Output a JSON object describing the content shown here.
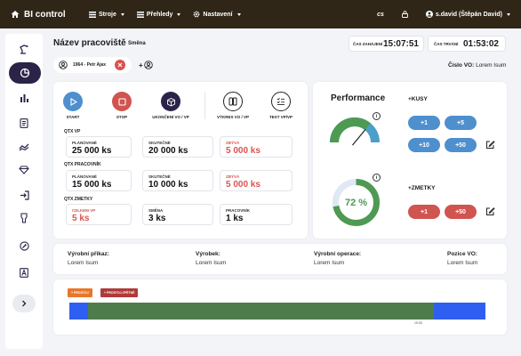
{
  "app": {
    "title": "BI control"
  },
  "nav": [
    {
      "label": "Stroje"
    },
    {
      "label": "Přehledy"
    },
    {
      "label": "Nastavení"
    }
  ],
  "topbar": {
    "lang": "cs",
    "user": "s.david (Štěpán David)"
  },
  "header": {
    "title": "Název pracoviště",
    "shift": "Směna",
    "start_label": "ČAS ZAHÁJENÍ",
    "start_time": "15:07:51",
    "duration_label": "ČAS TRVÁNÍ",
    "duration_time": "01:53:02",
    "operator": "1964 - Petr Ajax",
    "vo_label": "Číslo VO:",
    "vo_value": "Lorem Isum"
  },
  "actions": [
    {
      "label": "START",
      "color": "#4e8fce"
    },
    {
      "label": "STOP",
      "color": "#d05450"
    },
    {
      "label": "UKONČENÍ VO / VP",
      "color": "#2c2348"
    },
    {
      "label": "VÝKRES VO / VP"
    },
    {
      "label": "TEXT VP/VP"
    }
  ],
  "qtx_vp": {
    "title": "QTX VP",
    "planned_label": "PLÁNOVANÉ",
    "planned_value": "25 000 ks",
    "actual_label": "SKUTEČNÉ",
    "actual_value": "20 000 ks",
    "remaining_label": "ZBÝVÁ",
    "remaining_value": "5 000 ks"
  },
  "qtx_work": {
    "title": "QTX PRACOVNÍK",
    "planned_label": "PLÁNOVANÉ",
    "planned_value": "15 000 ks",
    "actual_label": "SKUTEČNÉ",
    "actual_value": "10 000 ks",
    "remaining_label": "ZBÝVÁ",
    "remaining_value": "5 000 ks"
  },
  "qtx_scrap": {
    "title": "QTX ZMETKY",
    "total_label": "CELKEM VP",
    "total_value": "5 ks",
    "shift_label": "SMĚNA",
    "shift_value": "3 ks",
    "worker_label": "PRACOVNÍK",
    "worker_value": "1 ks"
  },
  "performance": {
    "title": "Performance",
    "gauge_fraction": 0.72,
    "donut_value": "72 %",
    "donut_fraction": 0.72,
    "kusy_label": "+KUSY",
    "kusy_buttons": [
      "+1",
      "+5",
      "+10",
      "+50"
    ],
    "zmetky_label": "+ZMETKY",
    "zmetky_buttons": [
      "+1",
      "+50"
    ]
  },
  "fields": [
    {
      "label": "Výrobní příkaz:",
      "value": "Lorem Isum"
    },
    {
      "label": "Výrobek:",
      "value": "Lorem Isum"
    },
    {
      "label": "Výrobní operace:",
      "value": "Lorem Isum"
    },
    {
      "label": "Pozice VO:",
      "value": "Lorem Isum"
    }
  ],
  "timeline": {
    "badge1": "+ PROSTOJ",
    "badge2": "+ PROSTOJ ZPĚTNĚ",
    "tick": "15:05",
    "colors": {
      "blue": "#2f5ff0",
      "green": "#4f7c4b"
    }
  }
}
